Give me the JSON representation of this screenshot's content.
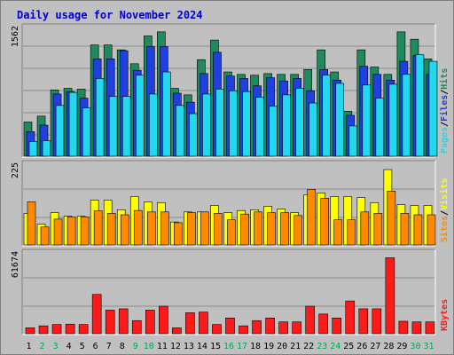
{
  "chart_data": [
    {
      "type": "bar",
      "title": "Daily usage for November 2024",
      "ymax_label": "1562",
      "ylim": [
        0,
        1562
      ],
      "categories": [
        "1",
        "2",
        "3",
        "4",
        "5",
        "6",
        "7",
        "8",
        "9",
        "10",
        "11",
        "12",
        "13",
        "14",
        "15",
        "16",
        "17",
        "18",
        "19",
        "20",
        "21",
        "22",
        "23",
        "24",
        "25",
        "26",
        "27",
        "28",
        "29",
        "30",
        "31"
      ],
      "weekend_days": [
        "2",
        "3",
        "9",
        "10",
        "16",
        "17",
        "23",
        "24",
        "30",
        "31"
      ],
      "series": [
        {
          "name": "Hits",
          "color": "#1f8a5c",
          "values": [
            418,
            490,
            810,
            830,
            820,
            1360,
            1360,
            1300,
            1130,
            1470,
            1520,
            830,
            750,
            1180,
            1420,
            1030,
            1000,
            990,
            1010,
            1000,
            1000,
            1060,
            1300,
            1030,
            550,
            1300,
            1090,
            1000,
            1520,
            1430,
            1190
          ]
        },
        {
          "name": "Files",
          "color": "#1f3fe0",
          "values": [
            300,
            380,
            760,
            790,
            710,
            1190,
            1190,
            1290,
            1050,
            1340,
            1340,
            770,
            660,
            1010,
            1270,
            980,
            950,
            860,
            960,
            920,
            950,
            800,
            1060,
            930,
            500,
            1100,
            1000,
            930,
            1160,
            1230,
            1000
          ]
        },
        {
          "name": "Pages",
          "color": "#22d8ee",
          "values": [
            180,
            190,
            620,
            780,
            590,
            950,
            730,
            730,
            990,
            760,
            1030,
            620,
            520,
            760,
            820,
            800,
            790,
            720,
            610,
            750,
            830,
            650,
            990,
            890,
            370,
            870,
            710,
            880,
            1000,
            1240,
            1160
          ]
        }
      ]
    },
    {
      "type": "bar",
      "ymax_label": "225",
      "ylim": [
        0,
        225
      ],
      "categories": [
        "1",
        "2",
        "3",
        "4",
        "5",
        "6",
        "7",
        "8",
        "9",
        "10",
        "11",
        "12",
        "13",
        "14",
        "15",
        "16",
        "17",
        "18",
        "19",
        "20",
        "21",
        "22",
        "23",
        "24",
        "25",
        "26",
        "27",
        "28",
        "29",
        "30",
        "31"
      ],
      "series": [
        {
          "name": "Visits",
          "color": "#ffff00",
          "values": [
            88,
            58,
            90,
            80,
            80,
            125,
            125,
            98,
            135,
            120,
            118,
            64,
            92,
            92,
            110,
            90,
            96,
            98,
            108,
            100,
            90,
            140,
            145,
            135,
            135,
            132,
            118,
            210,
            112,
            110,
            110
          ]
        },
        {
          "name": "Sites",
          "color": "#ff8a00",
          "values": [
            120,
            50,
            72,
            78,
            78,
            95,
            88,
            84,
            96,
            92,
            92,
            62,
            90,
            92,
            88,
            70,
            86,
            92,
            90,
            90,
            82,
            155,
            130,
            70,
            70,
            92,
            88,
            150,
            88,
            84,
            84
          ]
        }
      ]
    },
    {
      "type": "bar",
      "ymax_label": "61674",
      "ylim": [
        0,
        61674
      ],
      "categories": [
        "1",
        "2",
        "3",
        "4",
        "5",
        "6",
        "7",
        "8",
        "9",
        "10",
        "11",
        "12",
        "13",
        "14",
        "15",
        "16",
        "17",
        "18",
        "19",
        "20",
        "21",
        "22",
        "23",
        "24",
        "25",
        "26",
        "27",
        "28",
        "29",
        "30",
        "31"
      ],
      "series": [
        {
          "name": "KBytes",
          "color": "#ff1a1a",
          "values": [
            4500,
            6000,
            7000,
            7300,
            7000,
            30000,
            18000,
            19000,
            10000,
            18000,
            21000,
            4500,
            16000,
            16500,
            7000,
            12000,
            6000,
            10000,
            12000,
            9000,
            9000,
            21000,
            15000,
            12000,
            25000,
            19000,
            19000,
            58000,
            9500,
            9000,
            9000
          ]
        }
      ]
    }
  ]
}
